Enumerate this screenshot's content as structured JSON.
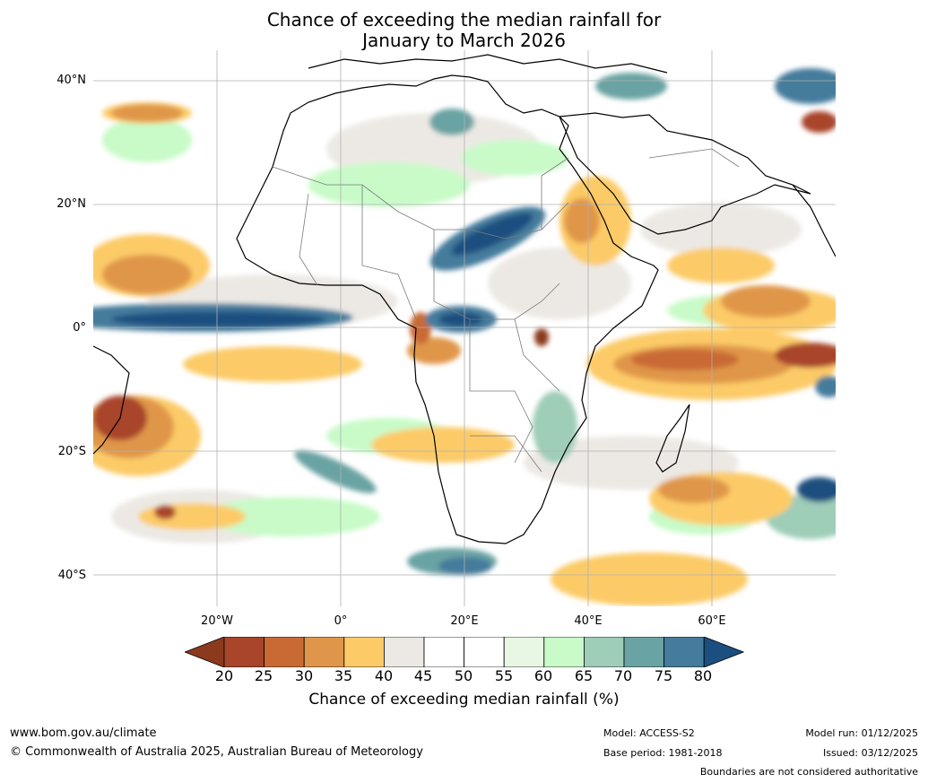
{
  "title_line1": "Chance of exceeding the median rainfall for",
  "title_line2": "January to March 2026",
  "lat_labels": [
    "40°N",
    "20°N",
    "0°",
    "20°S",
    "40°S"
  ],
  "lon_labels": [
    "20°W",
    "0°",
    "20°E",
    "40°E",
    "60°E"
  ],
  "colorbar": {
    "ticks": [
      "20",
      "25",
      "30",
      "35",
      "40",
      "45",
      "50",
      "55",
      "60",
      "65",
      "70",
      "75",
      "80"
    ],
    "colors": [
      "#8b3a1e",
      "#a8452a",
      "#c96a35",
      "#e0964a",
      "#fccb68",
      "#ece9e4",
      "#ffffff",
      "#ffffff",
      "#e8f7e4",
      "#c8fbc8",
      "#9ecdb8",
      "#6aa3a3",
      "#457b9c",
      "#1a4f80"
    ],
    "label": "Chance of exceeding median rainfall (%)"
  },
  "footer": {
    "url": "www.bom.gov.au/climate",
    "copyright": "© Commonwealth of Australia 2025, Australian Bureau of Meteorology",
    "model": "Model: ACCESS-S2",
    "base_period": "Base period: 1981-2018",
    "model_run": "Model run: 01/12/2025",
    "issued": "Issued: 03/12/2025",
    "disclaimer": "Boundaries are not considered authoritative"
  }
}
